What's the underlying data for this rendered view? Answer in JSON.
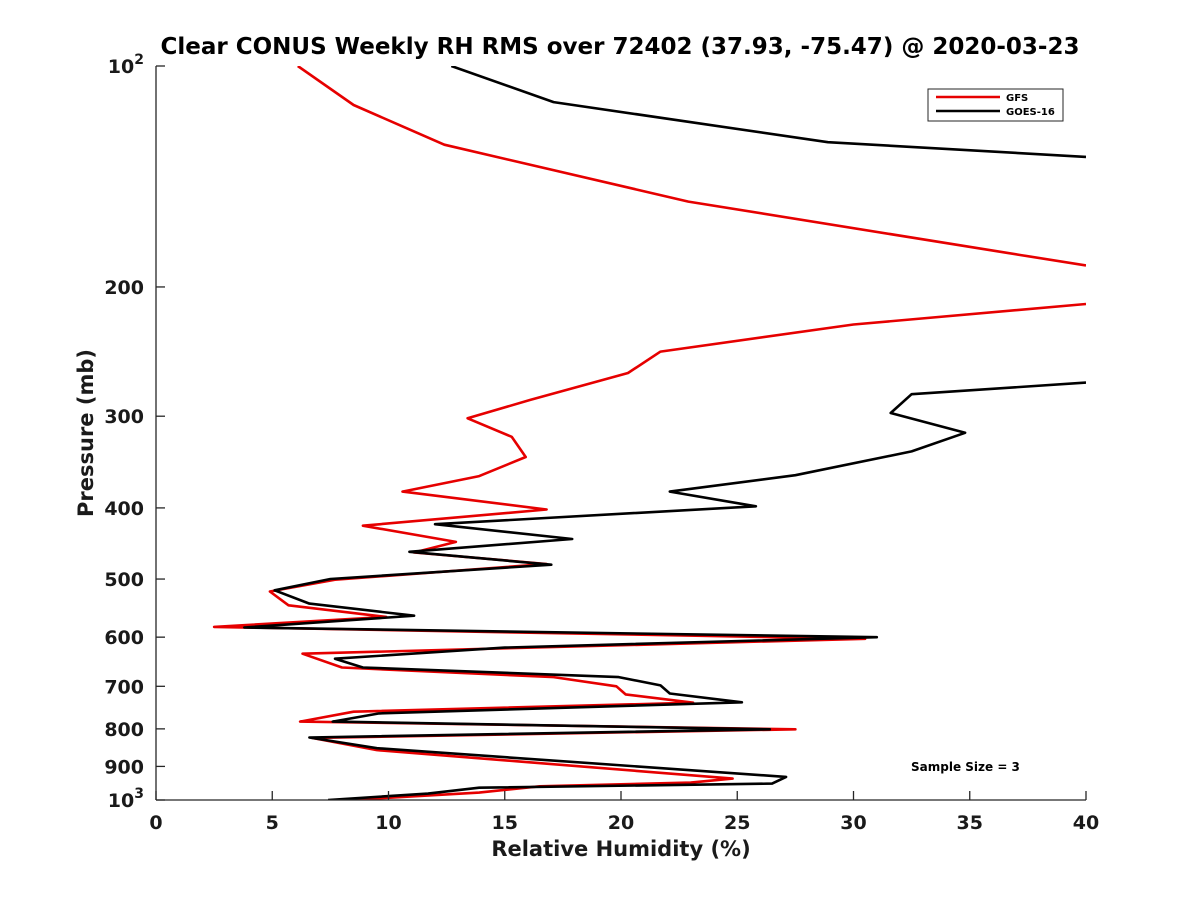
{
  "chart_data": {
    "type": "line",
    "title": "Clear CONUS Weekly RH RMS over 72402 (37.93, -75.47) @ 2020-03-23",
    "xlabel": "Relative Humidity (%)",
    "ylabel": "Pressure (mb)",
    "xlim": [
      0,
      40
    ],
    "ylim": [
      100,
      1000
    ],
    "yscale": "log",
    "xticks": [
      {
        "value": 0,
        "label": "0"
      },
      {
        "value": 5,
        "label": "5"
      },
      {
        "value": 10,
        "label": "10"
      },
      {
        "value": 15,
        "label": "15"
      },
      {
        "value": 20,
        "label": "20"
      },
      {
        "value": 25,
        "label": "25"
      },
      {
        "value": 30,
        "label": "30"
      },
      {
        "value": 35,
        "label": "35"
      },
      {
        "value": 40,
        "label": "40"
      }
    ],
    "yticks": [
      {
        "value": 100,
        "base": "10",
        "exp": "2"
      },
      {
        "value": 200,
        "base": "200",
        "exp": ""
      },
      {
        "value": 300,
        "base": "300",
        "exp": ""
      },
      {
        "value": 400,
        "base": "400",
        "exp": ""
      },
      {
        "value": 500,
        "base": "500",
        "exp": ""
      },
      {
        "value": 600,
        "base": "600",
        "exp": ""
      },
      {
        "value": 700,
        "base": "700",
        "exp": ""
      },
      {
        "value": 800,
        "base": "800",
        "exp": ""
      },
      {
        "value": 900,
        "base": "900",
        "exp": ""
      },
      {
        "value": 1000,
        "base": "10",
        "exp": "3"
      }
    ],
    "grid": false,
    "legend_position": "top-right",
    "annotation": "Sample Size = 3",
    "series": [
      {
        "name": "GFS",
        "color": "#e60000",
        "points": [
          [
            6.1,
            100
          ],
          [
            8.5,
            113
          ],
          [
            12.4,
            128
          ],
          [
            22.9,
            153
          ],
          [
            37.2,
            181
          ],
          [
            40,
            187
          ],
          [
            null,
            null
          ],
          [
            40,
            211
          ],
          [
            30.0,
            225
          ],
          [
            21.7,
            245
          ],
          [
            20.3,
            262
          ],
          [
            16.1,
            285
          ],
          [
            13.4,
            302
          ],
          [
            15.3,
            320
          ],
          [
            15.9,
            341
          ],
          [
            13.9,
            362
          ],
          [
            10.6,
            380
          ],
          [
            16.8,
            402
          ],
          [
            8.9,
            423
          ],
          [
            12.9,
            445
          ],
          [
            11.1,
            460
          ],
          [
            16.8,
            477
          ],
          [
            7.7,
            501
          ],
          [
            4.9,
            520
          ],
          [
            5.7,
            543
          ],
          [
            9.9,
            563
          ],
          [
            2.5,
            581
          ],
          [
            30.5,
            603
          ],
          [
            6.3,
            632
          ],
          [
            8.0,
            660
          ],
          [
            17.1,
            680
          ],
          [
            19.8,
            700
          ],
          [
            20.2,
            718
          ],
          [
            23.1,
            737
          ],
          [
            8.5,
            758
          ],
          [
            6.2,
            782
          ],
          [
            27.5,
            801
          ],
          [
            6.7,
            823
          ],
          [
            9.5,
            855
          ],
          [
            24.8,
            935
          ],
          [
            23.0,
            947
          ],
          [
            16.5,
            958
          ],
          [
            13.9,
            977
          ],
          [
            8.3,
            1000
          ]
        ]
      },
      {
        "name": "GOES-16",
        "color": "#000000",
        "points": [
          [
            12.7,
            100
          ],
          [
            17.1,
            112
          ],
          [
            28.9,
            127
          ],
          [
            40,
            133
          ],
          [
            null,
            null
          ],
          [
            40,
            270
          ],
          [
            32.5,
            280
          ],
          [
            31.6,
            297
          ],
          [
            34.8,
            316
          ],
          [
            32.5,
            335
          ],
          [
            27.5,
            361
          ],
          [
            22.1,
            380
          ],
          [
            25.8,
            398
          ],
          [
            12.0,
            421
          ],
          [
            17.9,
            441
          ],
          [
            10.9,
            459
          ],
          [
            17.0,
            478
          ],
          [
            7.5,
            500
          ],
          [
            5.1,
            518
          ],
          [
            6.6,
            540
          ],
          [
            11.1,
            561
          ],
          [
            3.8,
            582
          ],
          [
            31.0,
            600
          ],
          [
            15.0,
            620
          ],
          [
            7.7,
            642
          ],
          [
            8.9,
            660
          ],
          [
            19.9,
            680
          ],
          [
            21.7,
            698
          ],
          [
            22.1,
            716
          ],
          [
            25.2,
            736
          ],
          [
            9.6,
            762
          ],
          [
            7.6,
            782
          ],
          [
            26.4,
            801
          ],
          [
            6.6,
            822
          ],
          [
            9.5,
            850
          ],
          [
            27.1,
            930
          ],
          [
            26.5,
            950
          ],
          [
            13.9,
            962
          ],
          [
            11.7,
            980
          ],
          [
            7.4,
            1000
          ]
        ]
      }
    ]
  }
}
